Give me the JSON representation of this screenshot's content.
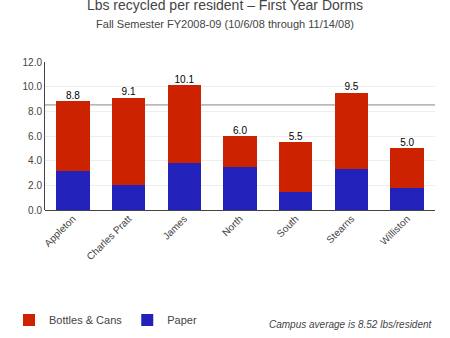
{
  "chart_data": {
    "type": "bar",
    "stacked": true,
    "title": "Lbs recycled per resident – First Year Dorms",
    "subtitle": "Fall Semester FY2008-09 (10/6/08 through 11/14/08)",
    "categories": [
      "Appleton",
      "Charles Pratt",
      "James",
      "North",
      "South",
      "Stearns",
      "Williston"
    ],
    "series": [
      {
        "name": "Paper",
        "color": "#2222bb",
        "values": [
          3.2,
          2.0,
          3.8,
          3.5,
          1.5,
          3.3,
          1.8
        ]
      },
      {
        "name": "Bottles & Cans",
        "color": "#cc2200",
        "values": [
          5.6,
          7.1,
          6.3,
          2.5,
          4.0,
          6.2,
          3.2
        ]
      }
    ],
    "totals": {
      "values": [
        8.8,
        9.1,
        10.1,
        6.0,
        5.5,
        9.5,
        5.0
      ],
      "value_labels": [
        "8.8",
        "9.1",
        "10.1",
        "6.0",
        "5.5",
        "9.5",
        "5.0"
      ]
    },
    "reference_line": {
      "value": 8.52,
      "label": "Campus average is 8.52 lbs/resident"
    },
    "ylim": [
      0,
      12.0
    ],
    "yticks": [
      {
        "value": 0,
        "label": "0.0"
      },
      {
        "value": 2,
        "label": "2.0"
      },
      {
        "value": 4,
        "label": "4.0"
      },
      {
        "value": 6,
        "label": "6.0"
      },
      {
        "value": 8,
        "label": "8.0"
      },
      {
        "value": 10,
        "label": "10.0"
      },
      {
        "value": 12,
        "label": "12.0"
      }
    ],
    "grid": true,
    "legend": "bottom"
  }
}
